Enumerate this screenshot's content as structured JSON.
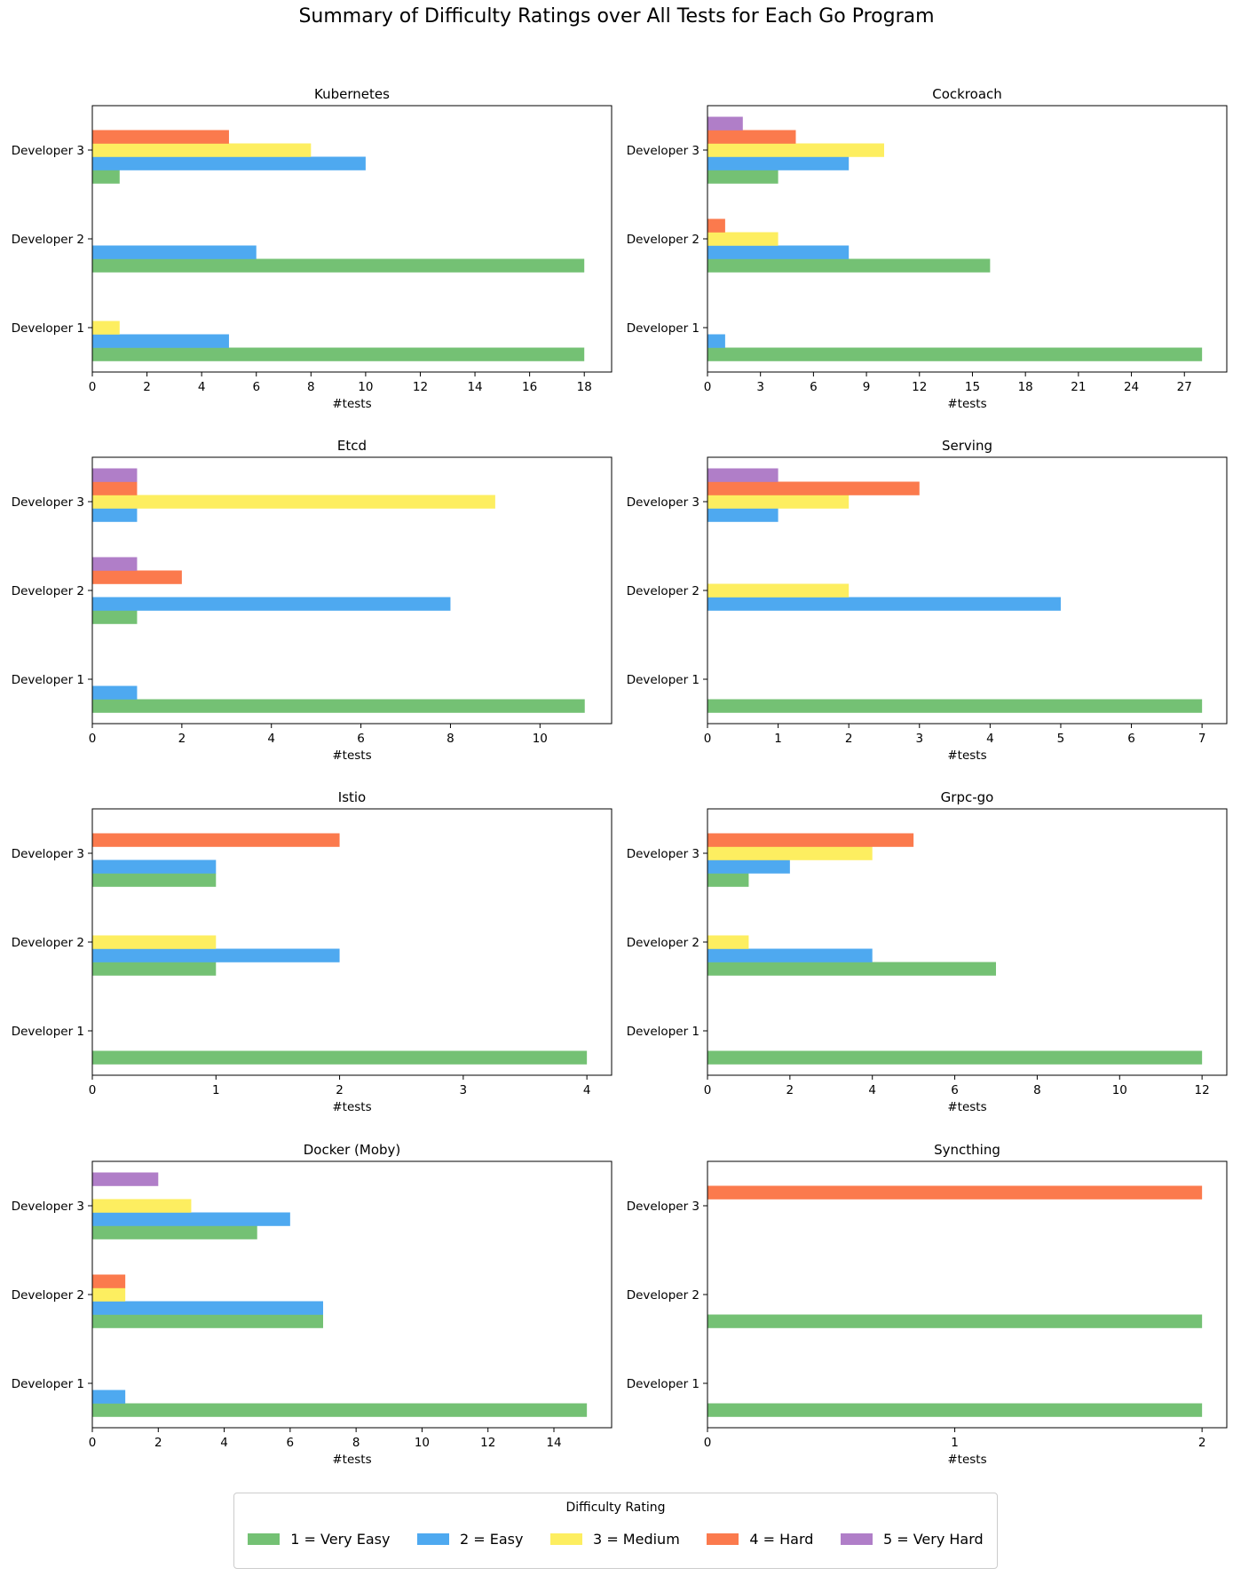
{
  "title": "Summary of Difficulty Ratings over All Tests for Each Go Program",
  "legend": {
    "title": "Difficulty Rating",
    "items": [
      {
        "label": "1 = Very Easy",
        "color": "#74c174"
      },
      {
        "label": "2 = Easy",
        "color": "#4ea9f0"
      },
      {
        "label": "3 = Medium",
        "color": "#fdee60"
      },
      {
        "label": "4 = Hard",
        "color": "#fb7a4d"
      },
      {
        "label": "5 = Very Hard",
        "color": "#b07ec8"
      }
    ]
  },
  "chart_data": [
    {
      "type": "bar",
      "orientation": "horizontal",
      "title": "Kubernetes",
      "xlabel": "#tests",
      "categories": [
        "Developer 1",
        "Developer 2",
        "Developer 3"
      ],
      "xticks": [
        0,
        2,
        4,
        6,
        8,
        10,
        12,
        14,
        16,
        18
      ],
      "xlim": [
        0,
        19
      ],
      "series": [
        {
          "name": "1 = Very Easy",
          "values": [
            18,
            18,
            1
          ]
        },
        {
          "name": "2 = Easy",
          "values": [
            5,
            6,
            10
          ]
        },
        {
          "name": "3 = Medium",
          "values": [
            1,
            0,
            8
          ]
        },
        {
          "name": "4 = Hard",
          "values": [
            0,
            0,
            5
          ]
        },
        {
          "name": "5 = Very Hard",
          "values": [
            0,
            0,
            0
          ]
        }
      ]
    },
    {
      "type": "bar",
      "orientation": "horizontal",
      "title": "Cockroach",
      "xlabel": "#tests",
      "categories": [
        "Developer 1",
        "Developer 2",
        "Developer 3"
      ],
      "xticks": [
        0,
        3,
        6,
        9,
        12,
        15,
        18,
        21,
        24,
        27
      ],
      "xlim": [
        0,
        29.4
      ],
      "series": [
        {
          "name": "1 = Very Easy",
          "values": [
            28,
            16,
            4
          ]
        },
        {
          "name": "2 = Easy",
          "values": [
            1,
            8,
            8
          ]
        },
        {
          "name": "3 = Medium",
          "values": [
            0,
            4,
            10
          ]
        },
        {
          "name": "4 = Hard",
          "values": [
            0,
            1,
            5
          ]
        },
        {
          "name": "5 = Very Hard",
          "values": [
            0,
            0,
            2
          ]
        }
      ]
    },
    {
      "type": "bar",
      "orientation": "horizontal",
      "title": "Etcd",
      "xlabel": "#tests",
      "categories": [
        "Developer 1",
        "Developer 2",
        "Developer 3"
      ],
      "xticks": [
        0,
        2,
        4,
        6,
        8,
        10
      ],
      "xlim": [
        0,
        11.6
      ],
      "series": [
        {
          "name": "1 = Very Easy",
          "values": [
            11,
            1,
            0
          ]
        },
        {
          "name": "2 = Easy",
          "values": [
            1,
            8,
            1
          ]
        },
        {
          "name": "3 = Medium",
          "values": [
            0,
            0,
            9
          ]
        },
        {
          "name": "4 = Hard",
          "values": [
            0,
            2,
            1
          ]
        },
        {
          "name": "5 = Very Hard",
          "values": [
            0,
            1,
            1
          ]
        }
      ]
    },
    {
      "type": "bar",
      "orientation": "horizontal",
      "title": "Serving",
      "xlabel": "#tests",
      "categories": [
        "Developer 1",
        "Developer 2",
        "Developer 3"
      ],
      "xticks": [
        0,
        1,
        2,
        3,
        4,
        5,
        6,
        7
      ],
      "xlim": [
        0,
        7.35
      ],
      "series": [
        {
          "name": "1 = Very Easy",
          "values": [
            7,
            0,
            0
          ]
        },
        {
          "name": "2 = Easy",
          "values": [
            0,
            5,
            1
          ]
        },
        {
          "name": "3 = Medium",
          "values": [
            0,
            2,
            2
          ]
        },
        {
          "name": "4 = Hard",
          "values": [
            0,
            0,
            3
          ]
        },
        {
          "name": "5 = Very Hard",
          "values": [
            0,
            0,
            1
          ]
        }
      ]
    },
    {
      "type": "bar",
      "orientation": "horizontal",
      "title": "Istio",
      "xlabel": "#tests",
      "categories": [
        "Developer 1",
        "Developer 2",
        "Developer 3"
      ],
      "xticks": [
        0,
        1,
        2,
        3,
        4
      ],
      "xlim": [
        0,
        4.2
      ],
      "series": [
        {
          "name": "1 = Very Easy",
          "values": [
            4,
            1,
            1
          ]
        },
        {
          "name": "2 = Easy",
          "values": [
            0,
            2,
            1
          ]
        },
        {
          "name": "3 = Medium",
          "values": [
            0,
            1,
            0
          ]
        },
        {
          "name": "4 = Hard",
          "values": [
            0,
            0,
            2
          ]
        },
        {
          "name": "5 = Very Hard",
          "values": [
            0,
            0,
            0
          ]
        }
      ]
    },
    {
      "type": "bar",
      "orientation": "horizontal",
      "title": "Grpc-go",
      "xlabel": "#tests",
      "categories": [
        "Developer 1",
        "Developer 2",
        "Developer 3"
      ],
      "xticks": [
        0,
        2,
        4,
        6,
        8,
        10,
        12
      ],
      "xlim": [
        0,
        12.6
      ],
      "series": [
        {
          "name": "1 = Very Easy",
          "values": [
            12,
            7,
            1
          ]
        },
        {
          "name": "2 = Easy",
          "values": [
            0,
            4,
            2
          ]
        },
        {
          "name": "3 = Medium",
          "values": [
            0,
            1,
            4
          ]
        },
        {
          "name": "4 = Hard",
          "values": [
            0,
            0,
            5
          ]
        },
        {
          "name": "5 = Very Hard",
          "values": [
            0,
            0,
            0
          ]
        }
      ]
    },
    {
      "type": "bar",
      "orientation": "horizontal",
      "title": "Docker (Moby)",
      "xlabel": "#tests",
      "categories": [
        "Developer 1",
        "Developer 2",
        "Developer 3"
      ],
      "xticks": [
        0,
        2,
        4,
        6,
        8,
        10,
        12,
        14
      ],
      "xlim": [
        0,
        15.75
      ],
      "series": [
        {
          "name": "1 = Very Easy",
          "values": [
            15,
            7,
            5
          ]
        },
        {
          "name": "2 = Easy",
          "values": [
            1,
            7,
            6
          ]
        },
        {
          "name": "3 = Medium",
          "values": [
            0,
            1,
            3
          ]
        },
        {
          "name": "4 = Hard",
          "values": [
            0,
            1,
            0
          ]
        },
        {
          "name": "5 = Very Hard",
          "values": [
            0,
            0,
            2
          ]
        }
      ]
    },
    {
      "type": "bar",
      "orientation": "horizontal",
      "title": "Syncthing",
      "xlabel": "#tests",
      "categories": [
        "Developer 1",
        "Developer 2",
        "Developer 3"
      ],
      "xticks": [
        0,
        1,
        2
      ],
      "xlim": [
        0,
        2.1
      ],
      "series": [
        {
          "name": "1 = Very Easy",
          "values": [
            2,
            2,
            0
          ]
        },
        {
          "name": "2 = Easy",
          "values": [
            0,
            0,
            0
          ]
        },
        {
          "name": "3 = Medium",
          "values": [
            0,
            0,
            0
          ]
        },
        {
          "name": "4 = Hard",
          "values": [
            0,
            0,
            2
          ]
        },
        {
          "name": "5 = Very Hard",
          "values": [
            0,
            0,
            0
          ]
        }
      ]
    }
  ]
}
